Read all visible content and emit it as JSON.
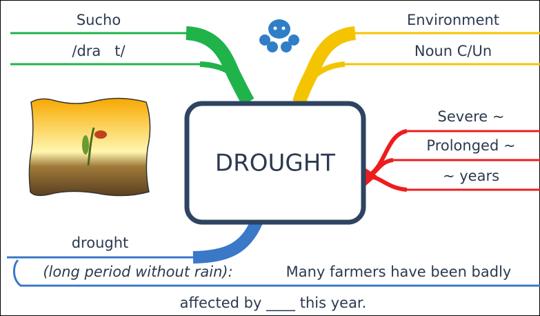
{
  "center": {
    "label": "DROUGHT"
  },
  "branches": [
    {
      "items": [
        "Sucho",
        "/dra   t/"
      ]
    },
    {
      "items": [
        "Environment",
        "Noun C/Un"
      ]
    },
    {
      "items": [
        "Severe ~",
        "Prolonged ~",
        "~ years"
      ]
    },
    {
      "items": [
        "drought",
        "(long period without rain):",
        "Many farmers have been badly",
        "affected by ____ this year."
      ]
    }
  ]
}
